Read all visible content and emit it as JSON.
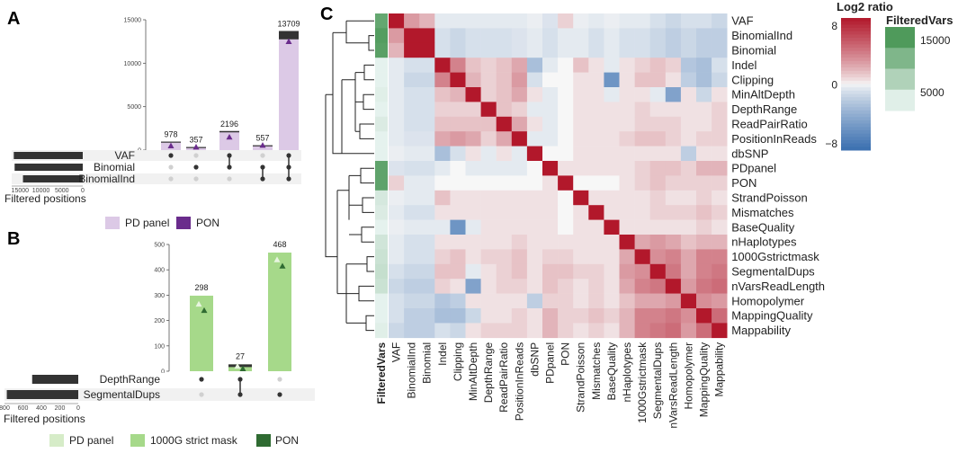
{
  "colors": {
    "pd_panel_A": "#dcc9e6",
    "pon_A": "#6a2c8c",
    "pd_panel_B": "#d6ecc8",
    "strict_mask_B": "#a6d98a",
    "pon_B": "#2f6b32",
    "bar_dark": "#333333",
    "filtered_low": "#f0f8f8",
    "filtered_high": "#4f9a5b",
    "heat_neg": "#3a6fb0",
    "heat_mid": "#f7f7f7",
    "heat_pos": "#b2182b"
  },
  "panel_labels": [
    "A",
    "B",
    "C"
  ],
  "chart_data": [
    {
      "id": "A",
      "type": "bar",
      "subtype": "upset",
      "ylim": [
        0,
        15000
      ],
      "yticks": [
        0,
        5000,
        10000,
        15000
      ],
      "bars": [
        {
          "value": 978,
          "label": "978",
          "pon": 500,
          "sets": [
            0
          ]
        },
        {
          "value": 357,
          "label": "357",
          "pon": 357,
          "sets": [
            1
          ]
        },
        {
          "value": 2196,
          "label": "2196",
          "pon": 1500,
          "sets": [
            0,
            1
          ]
        },
        {
          "value": 557,
          "label": "557",
          "pon": 557,
          "sets": [
            1,
            2
          ]
        },
        {
          "value": 13709,
          "label": "13709",
          "pon": 12500,
          "sets": [
            0,
            1,
            2
          ]
        }
      ],
      "sets": [
        {
          "name": "VAF",
          "size": 16500
        },
        {
          "name": "Binomial",
          "size": 16300
        },
        {
          "name": "BinomialInd",
          "size": 14300
        }
      ],
      "set_axis": {
        "ticks": [
          15000,
          10000,
          5000,
          0
        ],
        "tick_labels": [
          "15000",
          "10000",
          "5000",
          "0"
        ],
        "max": 17000,
        "xlabel": "Filtered positions"
      },
      "legend": [
        "PD panel",
        "PON"
      ]
    },
    {
      "id": "B",
      "type": "bar",
      "subtype": "upset",
      "ylim": [
        0,
        500
      ],
      "yticks": [
        0,
        100,
        200,
        300,
        400,
        500
      ],
      "bars": [
        {
          "value": 298,
          "label": "298",
          "pd_marker": 265,
          "pon": 240,
          "sets": [
            0
          ]
        },
        {
          "value": 27,
          "label": "27",
          "pd_marker": 20,
          "pon": 10,
          "sets": [
            0,
            1
          ]
        },
        {
          "value": 468,
          "label": "468",
          "pd_marker": 440,
          "pon": 415,
          "sets": [
            1
          ]
        }
      ],
      "sets": [
        {
          "name": "DepthRange",
          "size": 500
        },
        {
          "name": "SegmentalDups",
          "size": 775
        }
      ],
      "set_axis": {
        "ticks": [
          800,
          600,
          400,
          200,
          0
        ],
        "tick_labels": [
          "800",
          "600",
          "400",
          "200",
          "0"
        ],
        "max": 800,
        "xlabel": "Filtered positions"
      },
      "legend": [
        "PD panel",
        "1000G strict mask",
        "PON"
      ]
    },
    {
      "id": "C",
      "type": "heatmap",
      "title": "Log2 ratio",
      "scale_ticks": [
        8,
        0,
        -8
      ],
      "scale_tick_labels": [
        "8",
        "0",
        "−8"
      ],
      "filtered_title": "FilteredVars",
      "filtered_ticks": [
        "15000",
        "5000"
      ],
      "col_header": "FilteredVars",
      "variables": [
        "VAF",
        "BinomialInd",
        "Binomial",
        "Indel",
        "Clipping",
        "MinAltDepth",
        "DepthRange",
        "ReadPairRatio",
        "PositionInReads",
        "dbSNP",
        "PDpanel",
        "PON",
        "StrandPoisson",
        "Mismatches",
        "BaseQuality",
        "nHaplotypes",
        "1000Gstrictmask",
        "SegmentalDups",
        "nVarsReadLength",
        "Homopolymer",
        "MappingQuality",
        "Mappability"
      ],
      "filtered_vars": [
        14000,
        15500,
        15000,
        2000,
        2000,
        2500,
        2000,
        3000,
        2000,
        2000,
        14500,
        14500,
        3500,
        3000,
        2000,
        4000,
        4500,
        5000,
        4500,
        2000,
        2000,
        2500
      ],
      "matrix": [
        [
          9.0,
          3.0,
          2.0,
          -0.5,
          -0.5,
          -0.5,
          -0.5,
          -0.5,
          -0.5,
          -0.3,
          -0.8,
          1.0,
          -0.3,
          -0.5,
          -0.3,
          -0.5,
          -0.5,
          -1.0,
          -1.5,
          -1.0,
          -1.0,
          -1.5
        ],
        [
          3.0,
          9.0,
          9.0,
          -1.0,
          -1.5,
          -1.0,
          -1.0,
          -1.0,
          -0.8,
          -0.5,
          -1.0,
          -0.5,
          -0.5,
          -1.0,
          -0.5,
          -1.0,
          -1.0,
          -1.5,
          -2.0,
          -1.5,
          -2.0,
          -2.0
        ],
        [
          2.0,
          9.0,
          9.0,
          -1.0,
          -1.5,
          -1.0,
          -1.0,
          -1.0,
          -0.8,
          -0.5,
          -1.0,
          -0.5,
          -0.5,
          -1.0,
          -0.5,
          -1.0,
          -1.0,
          -1.5,
          -2.0,
          -1.5,
          -2.0,
          -2.0
        ],
        [
          -0.5,
          -1.0,
          -1.0,
          9.0,
          4.0,
          1.5,
          1.0,
          1.5,
          2.5,
          -3.0,
          -0.5,
          0.0,
          1.5,
          0.5,
          -0.5,
          0.5,
          1.0,
          1.5,
          1.0,
          -2.5,
          -3.0,
          -1.0
        ],
        [
          -0.5,
          -1.5,
          -1.5,
          4.0,
          9.0,
          2.0,
          1.0,
          1.5,
          3.0,
          -1.0,
          0.0,
          0.0,
          0.5,
          0.5,
          -6.0,
          0.5,
          1.5,
          1.5,
          0.5,
          -2.0,
          -3.0,
          -1.5
        ],
        [
          -0.5,
          -1.0,
          -1.0,
          1.5,
          2.0,
          9.0,
          1.0,
          1.5,
          2.5,
          0.5,
          -0.5,
          0.0,
          0.5,
          0.5,
          -0.5,
          0.5,
          0.5,
          -0.5,
          -5.0,
          0.5,
          -1.5,
          0.5
        ],
        [
          -0.5,
          -1.0,
          -1.0,
          1.0,
          1.0,
          1.0,
          9.0,
          1.5,
          1.0,
          -0.5,
          -0.5,
          0.0,
          0.5,
          0.5,
          0.5,
          0.5,
          1.0,
          0.5,
          0.5,
          0.5,
          0.5,
          1.0
        ],
        [
          -0.5,
          -1.0,
          -1.0,
          1.5,
          1.5,
          1.5,
          1.5,
          9.0,
          2.5,
          0.5,
          -0.5,
          0.0,
          0.5,
          0.5,
          0.5,
          0.5,
          1.0,
          1.0,
          1.0,
          0.5,
          0.5,
          1.0
        ],
        [
          -0.5,
          -0.8,
          -0.8,
          2.5,
          3.0,
          2.5,
          1.0,
          2.5,
          9.0,
          -0.5,
          -0.5,
          0.0,
          0.5,
          0.5,
          0.5,
          1.0,
          1.5,
          1.5,
          1.0,
          0.5,
          1.0,
          1.0
        ],
        [
          -0.3,
          -0.5,
          -0.5,
          -3.0,
          -1.0,
          0.5,
          -0.5,
          0.5,
          -0.5,
          9.0,
          0.0,
          0.0,
          0.5,
          0.5,
          0.5,
          0.5,
          0.5,
          0.5,
          0.5,
          -2.0,
          0.5,
          0.5
        ],
        [
          -0.8,
          -1.0,
          -1.0,
          -0.5,
          0.0,
          -0.5,
          -0.5,
          -0.5,
          -0.5,
          0.0,
          9.0,
          0.5,
          0.5,
          0.5,
          0.5,
          0.5,
          1.0,
          1.5,
          1.5,
          1.0,
          2.0,
          2.0
        ],
        [
          1.0,
          -0.5,
          -0.5,
          0.0,
          0.0,
          0.0,
          0.0,
          0.0,
          0.0,
          0.0,
          0.5,
          9.0,
          0.0,
          0.0,
          0.0,
          0.5,
          1.0,
          1.5,
          1.0,
          1.0,
          1.0,
          1.0
        ],
        [
          -0.3,
          -0.5,
          -0.5,
          1.5,
          0.5,
          0.5,
          0.5,
          0.5,
          0.5,
          0.5,
          0.5,
          0.0,
          9.0,
          0.5,
          0.5,
          0.5,
          0.5,
          1.0,
          0.5,
          0.5,
          1.0,
          0.5
        ],
        [
          -0.5,
          -1.0,
          -1.0,
          0.5,
          0.5,
          0.5,
          0.5,
          0.5,
          0.5,
          0.5,
          0.5,
          0.0,
          0.5,
          9.0,
          0.5,
          0.5,
          0.5,
          1.0,
          1.0,
          1.0,
          1.5,
          1.0
        ],
        [
          -0.3,
          -0.5,
          -0.5,
          -0.5,
          -6.0,
          -0.5,
          0.5,
          0.5,
          0.5,
          0.5,
          0.5,
          0.0,
          0.5,
          0.5,
          9.0,
          0.5,
          0.5,
          0.5,
          0.5,
          0.5,
          1.0,
          0.5
        ],
        [
          -0.5,
          -1.0,
          -1.0,
          0.5,
          0.5,
          0.5,
          0.5,
          0.5,
          1.0,
          0.5,
          0.5,
          0.5,
          0.5,
          0.5,
          0.5,
          9.0,
          2.5,
          3.0,
          2.5,
          1.5,
          2.0,
          2.0
        ],
        [
          -0.5,
          -1.0,
          -1.0,
          1.0,
          1.5,
          0.5,
          1.0,
          1.0,
          1.5,
          0.5,
          1.0,
          1.0,
          0.5,
          0.5,
          0.5,
          2.5,
          9.0,
          3.5,
          4.0,
          2.5,
          4.0,
          4.0
        ],
        [
          -1.0,
          -1.5,
          -1.5,
          1.5,
          1.5,
          -0.5,
          0.5,
          1.0,
          1.5,
          0.5,
          1.5,
          1.5,
          1.0,
          1.0,
          0.5,
          3.0,
          3.5,
          9.0,
          4.5,
          2.5,
          4.0,
          4.5
        ],
        [
          -1.5,
          -2.0,
          -2.0,
          1.0,
          0.5,
          -5.0,
          0.5,
          1.0,
          1.0,
          0.5,
          1.5,
          1.0,
          0.5,
          1.0,
          0.5,
          2.5,
          4.0,
          4.5,
          9.0,
          3.0,
          4.5,
          5.0
        ],
        [
          -1.0,
          -1.5,
          -1.5,
          -2.5,
          -2.0,
          0.5,
          0.5,
          0.5,
          0.5,
          -2.0,
          1.0,
          1.0,
          0.5,
          1.0,
          0.5,
          1.5,
          2.5,
          2.5,
          3.0,
          9.0,
          3.5,
          3.0
        ],
        [
          -1.0,
          -2.0,
          -2.0,
          -3.0,
          -3.0,
          -1.5,
          0.5,
          0.5,
          1.0,
          0.5,
          2.0,
          1.0,
          1.0,
          1.5,
          1.0,
          2.0,
          4.0,
          4.0,
          4.5,
          3.5,
          9.0,
          5.0
        ],
        [
          -1.5,
          -2.0,
          -2.0,
          -1.0,
          -1.5,
          0.5,
          1.0,
          1.0,
          1.0,
          0.5,
          2.0,
          1.0,
          0.5,
          1.0,
          0.5,
          2.0,
          4.0,
          4.5,
          5.0,
          3.0,
          5.0,
          9.0
        ]
      ]
    }
  ]
}
